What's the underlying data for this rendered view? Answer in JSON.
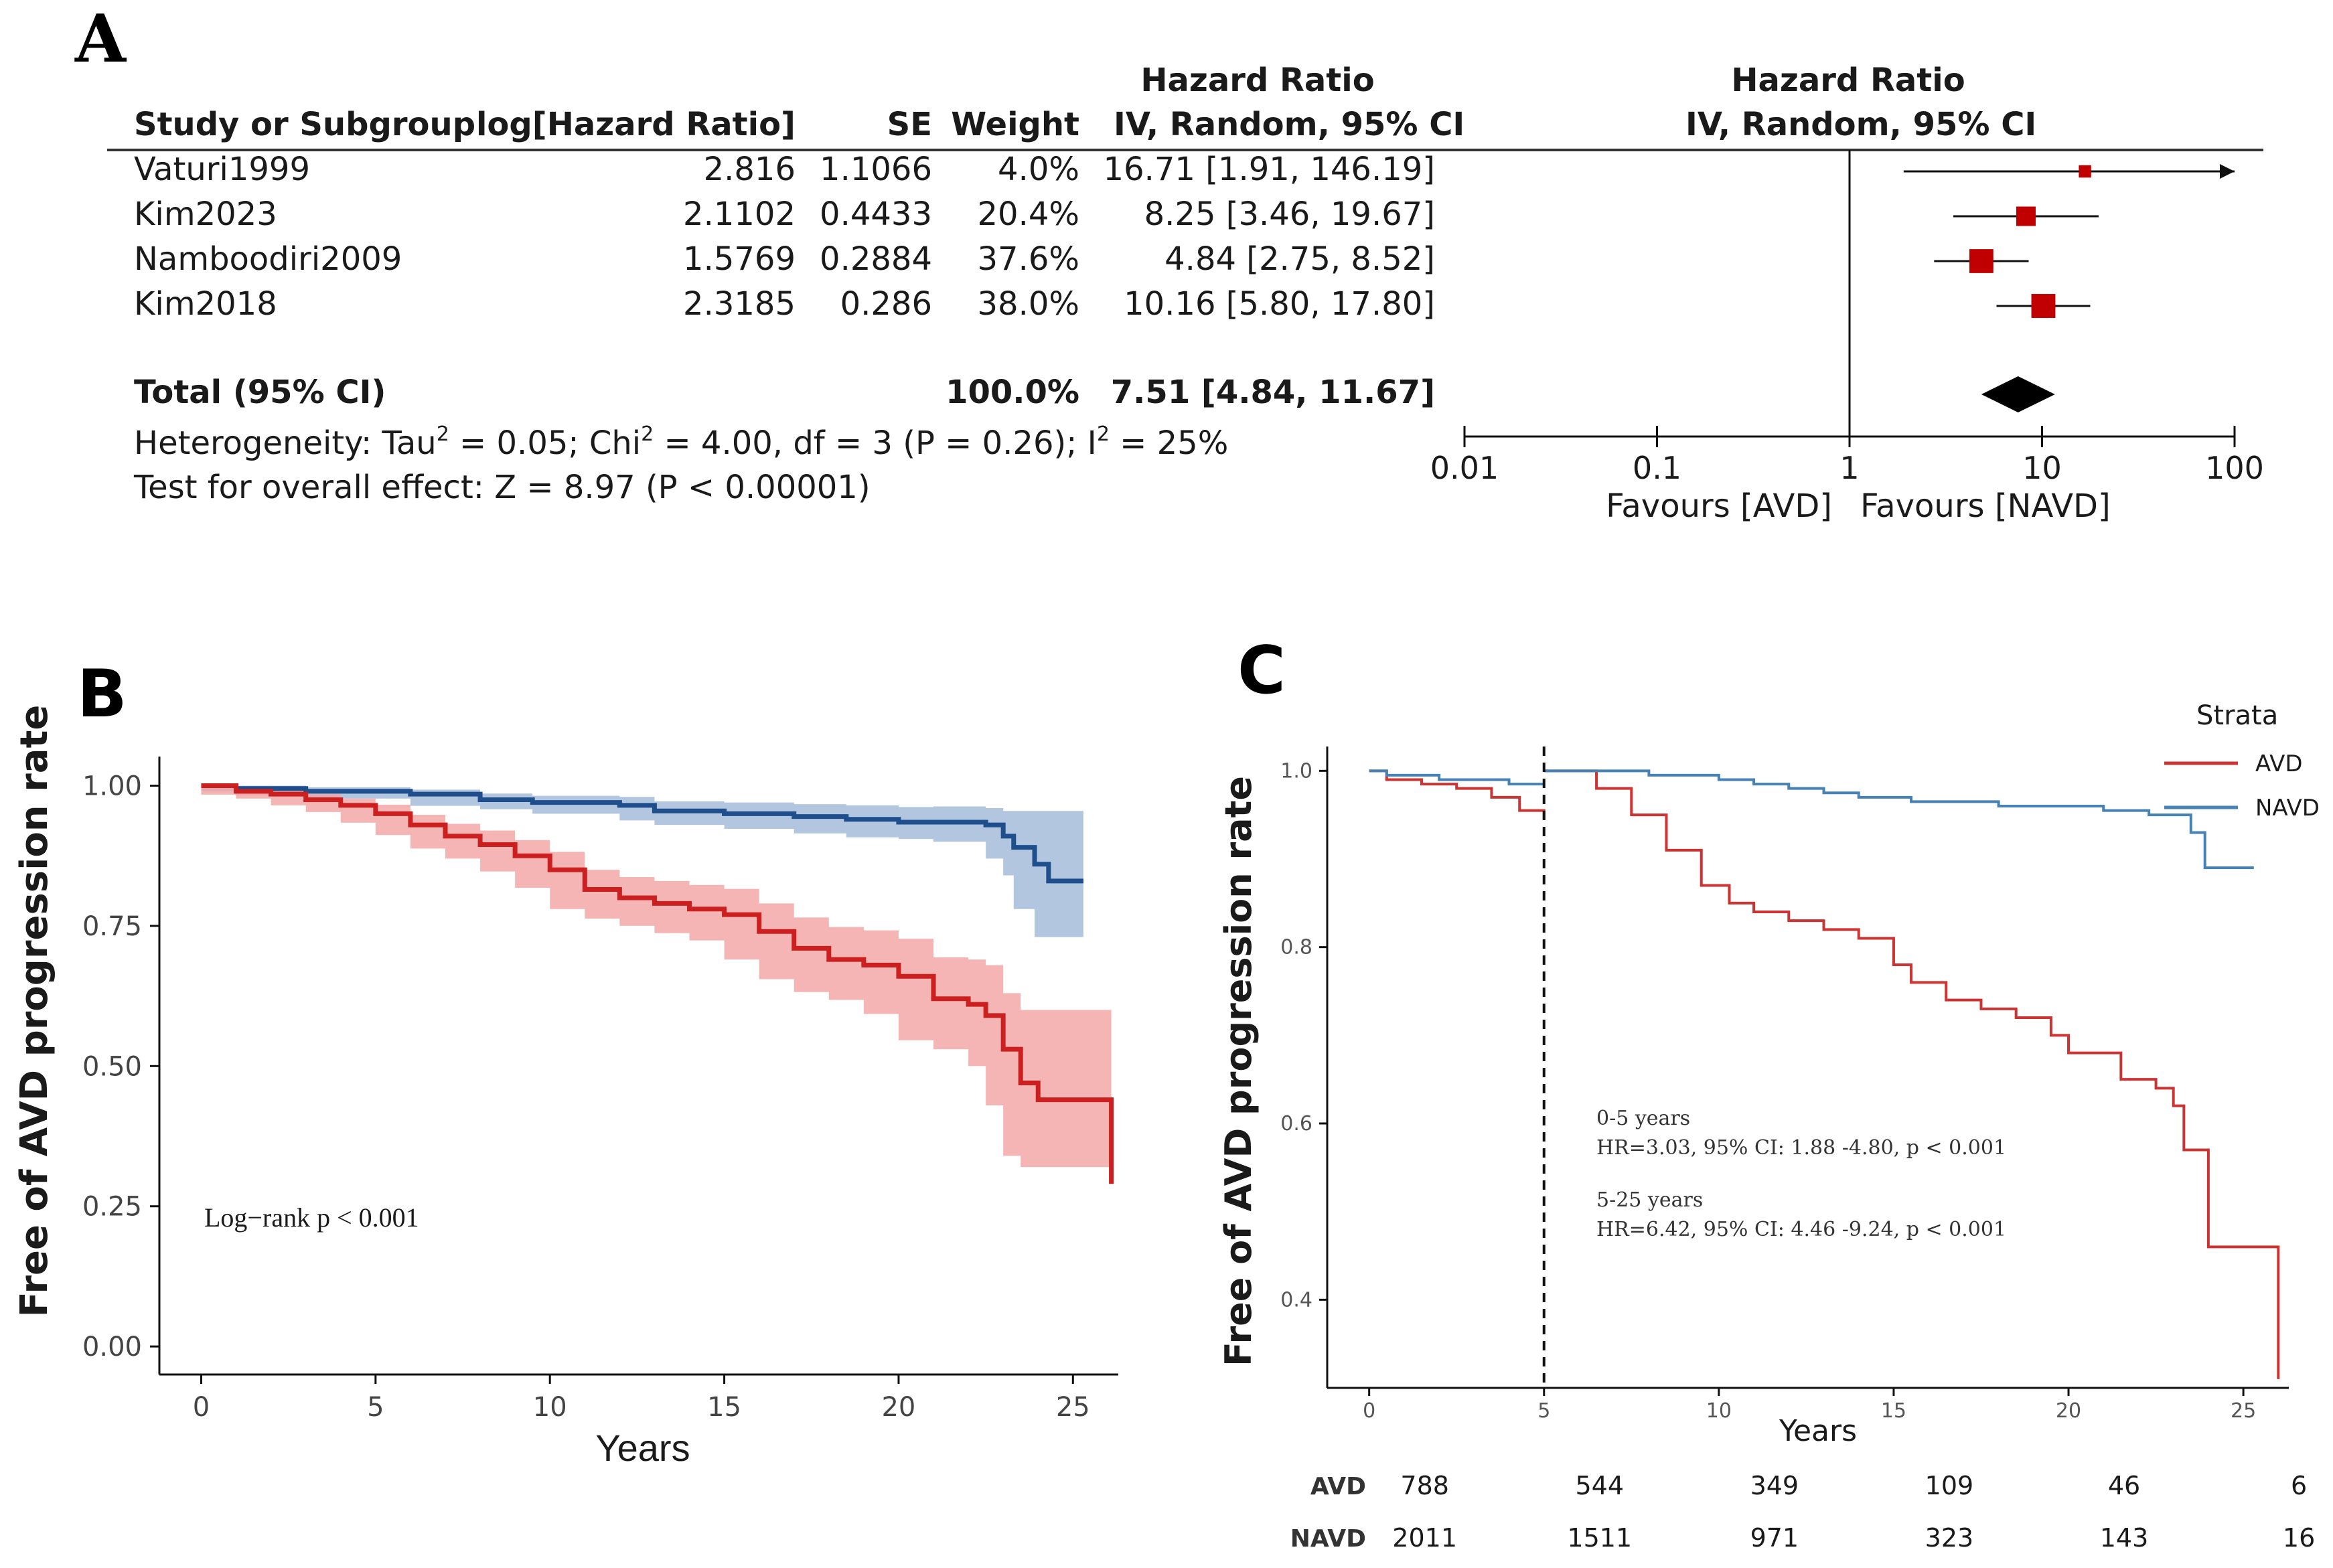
{
  "panel_labels": {
    "a": "A",
    "b": "B",
    "c": "C"
  },
  "chart_data": [
    {
      "type": "forest",
      "panel": "A",
      "header": {
        "study": "Study or Subgroup",
        "loghr": "log[Hazard Ratio]",
        "se": "SE",
        "weight": "Weight",
        "hr_title": "Hazard Ratio",
        "hr_sub": "IV, Random, 95% CI",
        "plot_title": "Hazard Ratio",
        "plot_sub": "IV, Random, 95% CI"
      },
      "studies": [
        {
          "name": "Vaturi1999",
          "loghr": "2.816",
          "se": "1.1066",
          "weight": "4.0%",
          "ci_text": "16.71 [1.91, 146.19]",
          "hr": 16.71,
          "lo": 1.91,
          "hi": 146.19,
          "w": 4.0
        },
        {
          "name": "Kim2023",
          "loghr": "2.1102",
          "se": "0.4433",
          "weight": "20.4%",
          "ci_text": "8.25 [3.46, 19.67]",
          "hr": 8.25,
          "lo": 3.46,
          "hi": 19.67,
          "w": 20.4
        },
        {
          "name": "Namboodiri2009",
          "loghr": "1.5769",
          "se": "0.2884",
          "weight": "37.6%",
          "ci_text": "4.84 [2.75, 8.52]",
          "hr": 4.84,
          "lo": 2.75,
          "hi": 8.52,
          "w": 37.6
        },
        {
          "name": "Kim2018",
          "loghr": "2.3185",
          "se": "0.286",
          "weight": "38.0%",
          "ci_text": "10.16 [5.80, 17.80]",
          "hr": 10.16,
          "lo": 5.8,
          "hi": 17.8,
          "w": 38.0
        }
      ],
      "total": {
        "label": "Total (95% CI)",
        "weight": "100.0%",
        "ci_text": "7.51 [4.84, 11.67]",
        "hr": 7.51,
        "lo": 4.84,
        "hi": 11.67
      },
      "heterogeneity": {
        "prefix": "Heterogeneity: Tau",
        "a": " = 0.05; Chi",
        "b": " = 4.00, df = 3 (P = 0.26); I",
        "c": " = 25%",
        "sup": "2"
      },
      "overall_effect": "Test for overall effect: Z = 8.97 (P < 0.00001)",
      "axis": {
        "scale": "log",
        "ticks": [
          0.01,
          0.1,
          1,
          10,
          100
        ],
        "tick_labels": [
          "0.01",
          "0.1",
          "1",
          "10",
          "100"
        ],
        "range": [
          0.01,
          100
        ]
      },
      "favours_left": "Favours [AVD]",
      "favours_right": "Favours [NAVD]",
      "colors": {
        "box": "#c00000",
        "total": "#000000"
      }
    },
    {
      "type": "line",
      "subtype": "kaplan-meier",
      "panel": "B",
      "xlabel": "Years",
      "ylabel": "Free of AVD progression rate",
      "xlim": [
        -1.2,
        26.3
      ],
      "ylim": [
        -0.05,
        1.04
      ],
      "xticks": [
        0,
        5,
        10,
        15,
        20,
        25
      ],
      "yticks": [
        0,
        0.25,
        0.5,
        0.75,
        1.0
      ],
      "ytick_labels": [
        "0.00",
        "0.25",
        "0.50",
        "0.75",
        "1.00"
      ],
      "annotation": "Log−rank p < 0.001",
      "series": [
        {
          "name": "NAVD",
          "color": "#1f4e8c",
          "band_color": "#9fb8d8",
          "x": [
            0,
            1,
            3,
            6,
            8,
            9.5,
            12,
            13,
            15,
            17,
            18.5,
            20,
            21,
            22.5,
            23,
            23.3,
            23.9,
            24.3,
            25.3
          ],
          "y": [
            1.0,
            0.995,
            0.99,
            0.985,
            0.975,
            0.97,
            0.965,
            0.955,
            0.95,
            0.945,
            0.94,
            0.935,
            0.935,
            0.93,
            0.91,
            0.89,
            0.86,
            0.83,
            0.83
          ],
          "upper": [
            1.0,
            1.0,
            0.997,
            0.993,
            0.986,
            0.982,
            0.98,
            0.972,
            0.97,
            0.967,
            0.965,
            0.962,
            0.963,
            0.96,
            0.955,
            0.955,
            0.955,
            0.955,
            0.955
          ],
          "lower": [
            1.0,
            0.99,
            0.983,
            0.977,
            0.964,
            0.958,
            0.95,
            0.938,
            0.93,
            0.923,
            0.915,
            0.908,
            0.905,
            0.9,
            0.87,
            0.84,
            0.78,
            0.73,
            0.73
          ]
        },
        {
          "name": "AVD",
          "color": "#cc1f1f",
          "band_color": "#f4a3a3",
          "x": [
            0,
            1,
            2,
            3,
            4,
            5,
            6,
            7,
            8,
            9,
            10,
            11,
            12,
            13,
            14,
            15,
            16,
            17,
            18,
            19,
            20,
            21,
            22,
            22.5,
            23,
            23.5,
            24,
            25,
            25.8,
            26.1
          ],
          "y": [
            1.0,
            0.99,
            0.985,
            0.975,
            0.965,
            0.95,
            0.93,
            0.91,
            0.895,
            0.875,
            0.85,
            0.815,
            0.8,
            0.79,
            0.78,
            0.77,
            0.74,
            0.71,
            0.69,
            0.68,
            0.66,
            0.62,
            0.61,
            0.59,
            0.53,
            0.47,
            0.44,
            0.44,
            0.44,
            0.29
          ],
          "upper": [
            1.0,
            0.996,
            0.993,
            0.985,
            0.977,
            0.966,
            0.948,
            0.932,
            0.92,
            0.903,
            0.882,
            0.85,
            0.837,
            0.83,
            0.823,
            0.816,
            0.79,
            0.765,
            0.748,
            0.742,
            0.727,
            0.694,
            0.69,
            0.68,
            0.63,
            0.6,
            0.6,
            0.6,
            0.6,
            0.6
          ],
          "lower": [
            1.0,
            0.984,
            0.977,
            0.965,
            0.953,
            0.934,
            0.912,
            0.888,
            0.87,
            0.847,
            0.818,
            0.78,
            0.763,
            0.75,
            0.737,
            0.724,
            0.69,
            0.655,
            0.632,
            0.618,
            0.593,
            0.546,
            0.53,
            0.5,
            0.43,
            0.34,
            0.32,
            0.32,
            0.32,
            0.32
          ]
        }
      ]
    },
    {
      "type": "line",
      "subtype": "kaplan-meier",
      "panel": "C",
      "xlabel": "Years",
      "ylabel": "Free of AVD progression rate",
      "xlim": [
        -1.2,
        26.3
      ],
      "ylim": [
        0.3,
        1.02
      ],
      "xticks": [
        0,
        5,
        10,
        15,
        20,
        25
      ],
      "yticks": [
        0.4,
        0.6,
        0.8,
        1.0
      ],
      "ytick_labels": [
        "0.4",
        "0.6",
        "0.8",
        "1.0"
      ],
      "landmark_x": 5,
      "legend": {
        "title": "Strata",
        "position": "top-right"
      },
      "annotations": [
        "0-5 years",
        "HR=3.03, 95% CI: 1.88 -4.80, p < 0.001",
        "5-25 years",
        "HR=6.42, 95% CI: 4.46 -9.24, p < 0.001"
      ],
      "series": [
        {
          "name": "AVD",
          "color": "#cc3333",
          "seg1_x": [
            0,
            0.5,
            1.5,
            2.5,
            3.5,
            4.3,
            5
          ],
          "seg1_y": [
            1.0,
            0.99,
            0.985,
            0.98,
            0.97,
            0.955,
            0.945
          ],
          "seg2_x": [
            5,
            6.5,
            7.5,
            8.5,
            9.5,
            10.3,
            11,
            12,
            13,
            14,
            15,
            15.5,
            16.5,
            17.5,
            18.5,
            19.5,
            20,
            21.5,
            22.5,
            23,
            23.3,
            24,
            25,
            26
          ],
          "seg2_y": [
            1.0,
            0.98,
            0.95,
            0.91,
            0.87,
            0.85,
            0.84,
            0.83,
            0.82,
            0.81,
            0.78,
            0.76,
            0.74,
            0.73,
            0.72,
            0.7,
            0.68,
            0.65,
            0.64,
            0.62,
            0.57,
            0.46,
            0.46,
            0.31
          ]
        },
        {
          "name": "NAVD",
          "color": "#4682b4",
          "seg1_x": [
            0,
            0.5,
            2,
            4,
            5
          ],
          "seg1_y": [
            1.0,
            0.995,
            0.99,
            0.985,
            0.985
          ],
          "seg2_x": [
            5,
            6.5,
            8,
            10,
            11,
            12,
            13,
            14,
            15.5,
            17,
            18,
            20,
            21,
            22.3,
            23.5,
            23.9,
            25.3
          ],
          "seg2_y": [
            1.0,
            1.0,
            0.995,
            0.99,
            0.985,
            0.98,
            0.975,
            0.97,
            0.965,
            0.965,
            0.96,
            0.96,
            0.955,
            0.95,
            0.93,
            0.89,
            0.89
          ]
        }
      ],
      "risk_table": {
        "times": [
          0,
          5,
          10,
          15,
          20,
          25
        ],
        "rows": [
          {
            "label": "AVD",
            "counts": [
              "788",
              "544",
              "349",
              "109",
              "46",
              "6"
            ]
          },
          {
            "label": "NAVD",
            "counts": [
              "2011",
              "1511",
              "971",
              "323",
              "143",
              "16"
            ]
          }
        ]
      }
    }
  ]
}
